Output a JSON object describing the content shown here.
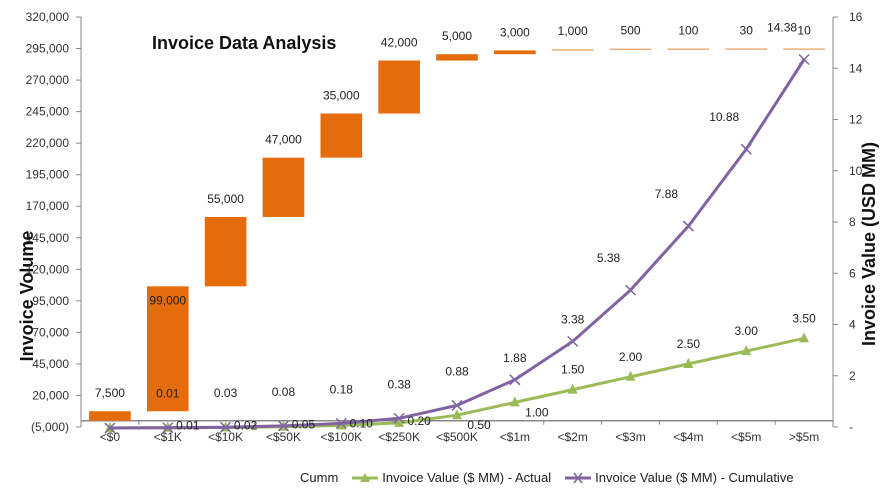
{
  "chart_data": {
    "type": "waterfall+line",
    "title": "Invoice Data Analysis",
    "categories": [
      "<$0",
      "<$1K",
      "<$10K",
      "<$50K",
      "<$100K",
      "<$250K",
      "<$500K",
      "<$1m",
      "<$2m",
      "<$3m",
      "<$4m",
      "<$5m",
      ">$5m"
    ],
    "ylabel_left": "Invoice Volume",
    "ylabel_right": "Invoice Value (USD MM)",
    "left_axis": {
      "min": -5000,
      "max": 320000,
      "step": 25000,
      "tick_labels": [
        "(5,000)",
        "20,000",
        "45,000",
        "70,000",
        "95,000",
        "120,000",
        "145,000",
        "170,000",
        "195,000",
        "220,000",
        "245,000",
        "270,000",
        "295,000",
        "320,000"
      ]
    },
    "right_axis": {
      "min": 0,
      "max": 16,
      "step": 2,
      "tick_labels": [
        "-",
        "2",
        "4",
        "6",
        "8",
        "10",
        "12",
        "14",
        "16"
      ]
    },
    "waterfall": {
      "name": "Cumm",
      "values": [
        7500,
        99000,
        55000,
        47000,
        35000,
        42000,
        5000,
        3000,
        1000,
        500,
        100,
        30,
        10
      ],
      "labels": [
        "7,500",
        "99,000",
        "55,000",
        "47,000",
        "35,000",
        "42,000",
        "5,000",
        "3,000",
        "1,000",
        "500",
        "100",
        "30",
        "10"
      ],
      "color": "#E46C0A"
    },
    "series": [
      {
        "name": "Invoice Value ($ MM) - Actual",
        "axis": "right",
        "color": "#9BBB59",
        "marker": "triangle",
        "values": [
          0,
          0.01,
          0.02,
          0.05,
          0.1,
          0.2,
          0.5,
          1.0,
          1.5,
          2.0,
          2.5,
          3.0,
          3.5
        ],
        "labels": [
          "",
          "0.01",
          "0.02",
          "0.05",
          "0.10",
          "0.20",
          "0.50",
          "1.00",
          "1.50",
          "2.00",
          "2.50",
          "3.00",
          "3.50"
        ]
      },
      {
        "name": "Invoice Value ($ MM) - Cumulative",
        "axis": "right",
        "color": "#8064A2",
        "marker": "x",
        "values": [
          0,
          0.01,
          0.03,
          0.08,
          0.18,
          0.38,
          0.88,
          1.88,
          3.38,
          5.38,
          7.88,
          10.88,
          14.38
        ],
        "labels": [
          "",
          "0.01",
          "0.03",
          "0.08",
          "0.18",
          "0.38",
          "0.88",
          "1.88",
          "3.38",
          "5.38",
          "7.88",
          "10.88",
          "14.38"
        ]
      }
    ],
    "legend": {
      "placement": "bottom",
      "entries": [
        "Cumm",
        "Invoice Value ($ MM) - Actual",
        "Invoice Value ($ MM) - Cumulative"
      ]
    },
    "grid": false
  }
}
